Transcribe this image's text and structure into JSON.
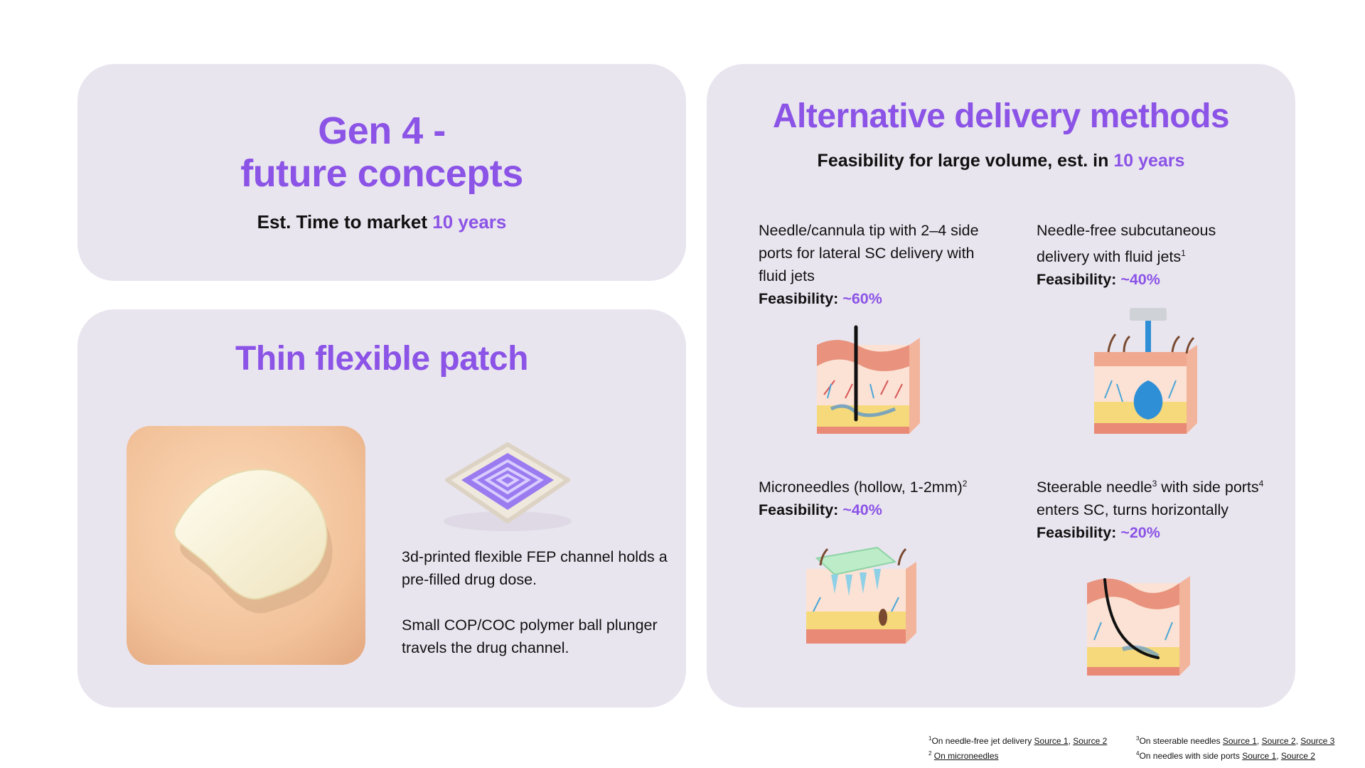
{
  "gen4": {
    "title_line1": "Gen 4 -",
    "title_line2": "future concepts",
    "subtitle_prefix": "Est. Time to market",
    "subtitle_value": "10 years"
  },
  "patch": {
    "title": "Thin flexible patch",
    "text1": "3d-printed flexible FEP channel holds a pre-filled drug dose.",
    "text2": "Small COP/COC polymer ball plunger travels the drug channel."
  },
  "alt": {
    "title": "Alternative delivery methods",
    "subtitle_prefix": "Feasibility for large volume, est. in",
    "subtitle_value": "10 years",
    "feasibility_label": "Feasibility:",
    "methods": [
      {
        "text": "Needle/cannula tip with 2–4 side ports for lateral SC delivery with fluid jets",
        "sup": "",
        "feasibility": "~60%"
      },
      {
        "text": "Needle-free subcutaneous delivery with fluid jets",
        "sup": "1",
        "feasibility": "~40%"
      },
      {
        "text": "Microneedles (hollow, 1-2mm)",
        "sup": "2",
        "feasibility": "~40%"
      },
      {
        "text_a": "Steerable needle",
        "sup_a": "3",
        "text_b": " with side ports",
        "sup_b": "4",
        "text_c": " enters SC, turns horizontally",
        "feasibility": "~20%"
      }
    ]
  },
  "footnotes": {
    "n1": {
      "num": "1",
      "text": "On needle-free jet delivery ",
      "links": [
        "Source 1",
        "Source 2"
      ]
    },
    "n2": {
      "num": "2",
      "link": "On microneedles"
    },
    "n3": {
      "num": "3",
      "text": "On steerable needles ",
      "links": [
        "Source 1",
        "Source 2",
        "Source 3"
      ]
    },
    "n4": {
      "num": "4",
      "text": "On needles with side ports ",
      "links": [
        "Source 1",
        "Source 2"
      ]
    }
  },
  "colors": {
    "accent": "#8b53e6",
    "card": "#e9e5ef"
  }
}
